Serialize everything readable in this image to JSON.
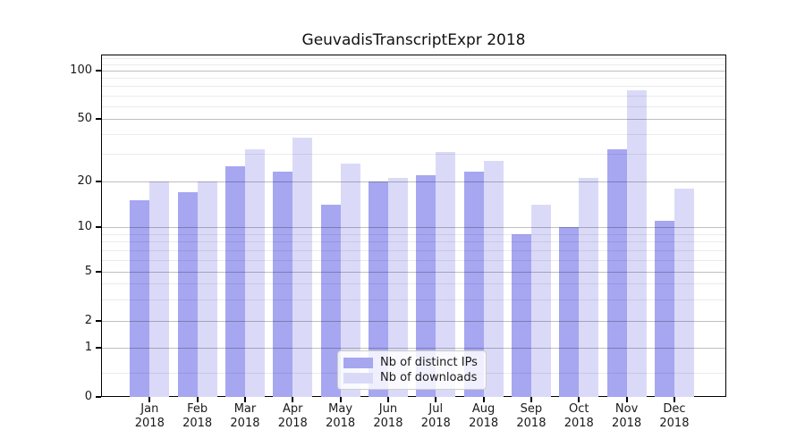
{
  "title": "GeuvadisTranscriptExpr 2018",
  "chart_data": {
    "type": "bar",
    "title": "GeuvadisTranscriptExpr 2018",
    "xlabel": "",
    "ylabel": "",
    "y_scale": "symlog",
    "categories": [
      "Jan 2018",
      "Feb 2018",
      "Mar 2018",
      "Apr 2018",
      "May 2018",
      "Jun 2018",
      "Jul 2018",
      "Aug 2018",
      "Sep 2018",
      "Oct 2018",
      "Nov 2018",
      "Dec 2018"
    ],
    "series": [
      {
        "name": "Nb of distinct IPs",
        "color": "#a6a6f1",
        "values": [
          15,
          17,
          25,
          23,
          14,
          20,
          22,
          23,
          9,
          10,
          32,
          11
        ]
      },
      {
        "name": "Nb of downloads",
        "color": "#dadaf8",
        "values": [
          20,
          20,
          32,
          38,
          26,
          21,
          31,
          27,
          14,
          21,
          75,
          18
        ]
      }
    ],
    "y_ticks": [
      100,
      50,
      20,
      10,
      5,
      2,
      1,
      0
    ],
    "ylim": [
      0,
      126
    ],
    "grid": "horizontal major and minor gridlines",
    "legend_position": "lower center"
  },
  "colors": {
    "bar_distinct_ips": "#a6a6f1",
    "bar_downloads": "#dadaf8",
    "major_grid": "rgba(0,0,0,0.25)",
    "minor_grid": "rgba(0,0,0,0.08)",
    "spine": "#000000",
    "text": "#1a1a1a"
  }
}
